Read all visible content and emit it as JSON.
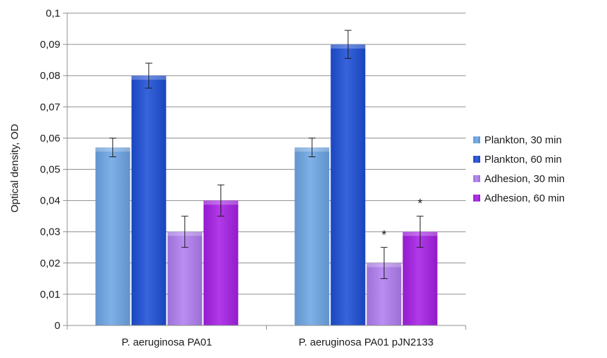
{
  "chart_data": {
    "type": "bar",
    "title": "",
    "xlabel": "",
    "ylabel": "Optical density, OD",
    "ylim": [
      0,
      0.1
    ],
    "yticks": [
      "0",
      "0,01",
      "0,02",
      "0,03",
      "0,04",
      "0,05",
      "0,06",
      "0,07",
      "0,08",
      "0,09",
      "0,1"
    ],
    "grid": true,
    "legend_position": "right",
    "categories": [
      "P. aeruginosa PA01",
      "P. aeruginosa PA01 pJN2133"
    ],
    "series": [
      {
        "name": "Plankton, 30 min",
        "color": "#6ea6e6",
        "values": [
          0.057,
          0.057
        ],
        "errors": [
          0.003,
          0.003
        ]
      },
      {
        "name": "Plankton, 60 min",
        "color": "#1d4fd6",
        "values": [
          0.08,
          0.09
        ],
        "errors": [
          0.004,
          0.0045
        ]
      },
      {
        "name": "Adhesion, 30 min",
        "color": "#b07ef0",
        "values": [
          0.03,
          0.02
        ],
        "errors": [
          0.005,
          0.005
        ]
      },
      {
        "name": "Adhesion, 60 min",
        "color": "#a61fe6",
        "values": [
          0.04,
          0.03
        ],
        "errors": [
          0.005,
          0.005
        ]
      }
    ],
    "annotations": [
      {
        "text": "*",
        "category": 1,
        "series": 2
      },
      {
        "text": "*",
        "category": 1,
        "series": 3
      }
    ]
  }
}
